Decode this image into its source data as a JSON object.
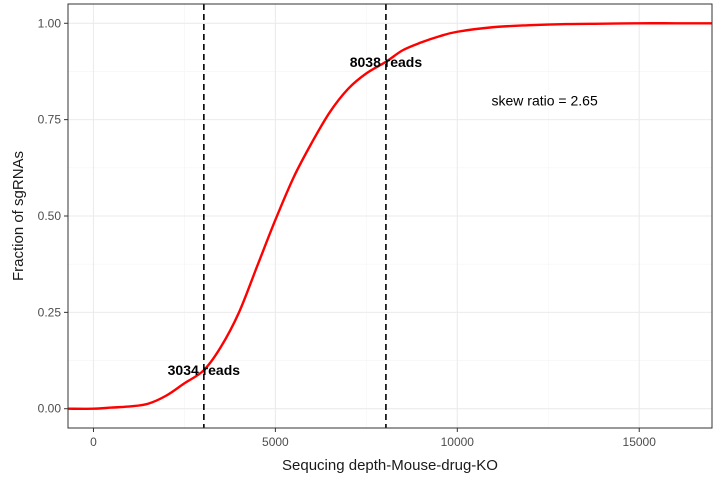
{
  "chart_data": {
    "type": "line",
    "xlabel": "Sequcing depth-Mouse-drug-KO",
    "ylabel": "Fraction of sgRNAs",
    "xlim": [
      -700,
      17000
    ],
    "ylim": [
      -0.05,
      1.05
    ],
    "x_ticks": [
      0,
      5000,
      10000,
      15000
    ],
    "y_ticks": [
      0.0,
      0.25,
      0.5,
      0.75,
      1.0
    ],
    "x_tick_labels": [
      "0",
      "5000",
      "10000",
      "15000"
    ],
    "y_tick_labels": [
      "0.00",
      "0.25",
      "0.50",
      "0.75",
      "1.00"
    ],
    "grid": true,
    "series": [
      {
        "color": "#ff0000",
        "x": [
          -700,
          0,
          500,
          1000,
          1500,
          2000,
          2500,
          3034,
          3500,
          4000,
          4500,
          5000,
          5500,
          6000,
          6500,
          7000,
          7500,
          8038,
          8500,
          9000,
          9500,
          10000,
          11000,
          12000,
          13000,
          14000,
          15000,
          16000,
          17000
        ],
        "y": [
          0.0,
          0.0,
          0.003,
          0.006,
          0.013,
          0.034,
          0.066,
          0.1,
          0.16,
          0.25,
          0.37,
          0.49,
          0.6,
          0.69,
          0.77,
          0.83,
          0.87,
          0.9,
          0.93,
          0.95,
          0.966,
          0.978,
          0.99,
          0.995,
          0.998,
          0.999,
          1.0,
          1.0,
          1.0
        ]
      }
    ],
    "vlines": [
      {
        "x": 3034,
        "style": "dashed",
        "color": "#000000"
      },
      {
        "x": 8038,
        "style": "dashed",
        "color": "#000000"
      }
    ],
    "annotations": [
      {
        "text": "3034 reads",
        "x": 3034,
        "y": 0.1,
        "bold": true
      },
      {
        "text": "8038 reads",
        "x": 8038,
        "y": 0.9,
        "bold": true
      },
      {
        "text": "skew ratio = 2.65",
        "x": 12400,
        "y": 0.8,
        "bold": false
      }
    ],
    "colors": {
      "panel_border": "#333333",
      "grid_major": "#ebebeb",
      "grid_minor": "#f5f5f5",
      "tick": "#333333"
    }
  }
}
